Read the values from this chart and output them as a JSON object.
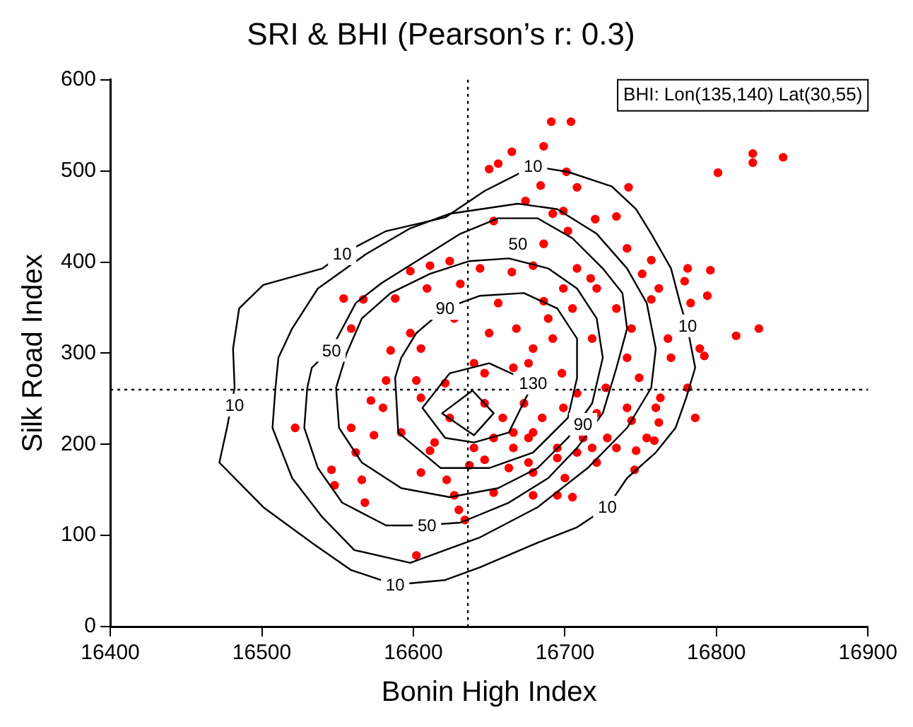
{
  "chart_data": {
    "type": "scatter",
    "title": "SRI & BHI (Pearson’s r: 0.3)",
    "xlabel": "Bonin High Index",
    "ylabel": "Silk Road Index",
    "xlim": [
      16400,
      16900
    ],
    "xticks": [
      16400,
      16500,
      16600,
      16700,
      16800,
      16900
    ],
    "ylim": [
      0,
      600
    ],
    "yticks": [
      0,
      100,
      200,
      300,
      400,
      500,
      600
    ],
    "grid": false,
    "legend": false,
    "marker": "circle",
    "annotations": [
      "BHI: Lon(135,140) Lat(30,55)",
      {
        "text": "10",
        "x": 16553,
        "y": 409
      },
      {
        "text": "10",
        "x": 16679,
        "y": 505
      },
      {
        "text": "10",
        "x": 16482,
        "y": 243
      },
      {
        "text": "10",
        "x": 16588,
        "y": 46
      },
      {
        "text": "10",
        "x": 16728,
        "y": 131
      },
      {
        "text": "10",
        "x": 16781,
        "y": 330
      },
      {
        "text": "50",
        "x": 16669,
        "y": 420
      },
      {
        "text": "50",
        "x": 16546,
        "y": 303
      },
      {
        "text": "50",
        "x": 16609,
        "y": 111
      },
      {
        "text": "90",
        "x": 16621,
        "y": 349
      },
      {
        "text": "90",
        "x": 16712,
        "y": 222
      },
      {
        "text": "130",
        "x": 16679,
        "y": 267
      }
    ],
    "ref_lines": [
      {
        "axis": "x",
        "value": 16636,
        "color": "#000000",
        "line_style": "dotted"
      },
      {
        "axis": "y",
        "value": 260,
        "color": "#000000",
        "line_style": "dotted"
      }
    ],
    "series": [
      {
        "color": "#ff0000",
        "x": [
          16691,
          16704,
          16686,
          16665,
          16656,
          16650,
          16801,
          16824,
          16824,
          16844,
          16701,
          16742,
          16684,
          16708,
          16674,
          16699,
          16692,
          16720,
          16734,
          16653,
          16686,
          16702,
          16741,
          16757,
          16781,
          16796,
          16598,
          16611,
          16624,
          16644,
          16665,
          16679,
          16699,
          16717,
          16751,
          16762,
          16779,
          16794,
          16783,
          16813,
          16828,
          16554,
          16567,
          16588,
          16609,
          16631,
          16656,
          16686,
          16705,
          16734,
          16757,
          16559,
          16585,
          16605,
          16627,
          16650,
          16668,
          16679,
          16692,
          16718,
          16744,
          16768,
          16789,
          16792,
          16582,
          16602,
          16621,
          16640,
          16647,
          16666,
          16676,
          16698,
          16708,
          16727,
          16749,
          16763,
          16781,
          16572,
          16580,
          16605,
          16624,
          16647,
          16659,
          16673,
          16685,
          16699,
          16721,
          16741,
          16760,
          16786,
          16522,
          16559,
          16574,
          16592,
          16614,
          16640,
          16653,
          16666,
          16676,
          16695,
          16712,
          16728,
          16744,
          16762,
          16562,
          16611,
          16647,
          16666,
          16676,
          16695,
          16708,
          16734,
          16747,
          16759,
          16754,
          16546,
          16566,
          16605,
          16622,
          16637,
          16663,
          16679,
          16700,
          16721,
          16746,
          16548,
          16627,
          16653,
          16679,
          16695,
          16705,
          16568,
          16630,
          16634,
          16602,
          16718,
          16679,
          16741,
          16770,
          16689,
          16708,
          16721,
          16598
        ],
        "values": [
          554,
          554,
          527,
          521,
          508,
          502,
          498,
          519,
          509,
          515,
          499,
          482,
          484,
          482,
          467,
          456,
          453,
          447,
          450,
          445,
          420,
          434,
          415,
          402,
          393,
          391,
          390,
          396,
          401,
          393,
          389,
          396,
          371,
          382,
          387,
          371,
          379,
          363,
          355,
          319,
          327,
          360,
          359,
          360,
          371,
          376,
          355,
          357,
          349,
          349,
          359,
          327,
          303,
          305,
          338,
          322,
          327,
          305,
          316,
          316,
          327,
          316,
          305,
          297,
          270,
          270,
          267,
          289,
          278,
          284,
          289,
          278,
          256,
          262,
          273,
          251,
          262,
          248,
          240,
          251,
          229,
          245,
          229,
          245,
          229,
          240,
          234,
          240,
          240,
          229,
          218,
          218,
          210,
          213,
          202,
          196,
          207,
          213,
          207,
          196,
          207,
          207,
          226,
          224,
          191,
          193,
          183,
          196,
          180,
          185,
          191,
          196,
          193,
          204,
          207,
          172,
          161,
          169,
          161,
          177,
          174,
          169,
          163,
          180,
          172,
          155,
          144,
          147,
          144,
          144,
          142,
          136,
          128,
          117,
          78,
          196,
          213,
          295,
          295,
          338,
          393,
          371,
          322
        ]
      }
    ]
  }
}
